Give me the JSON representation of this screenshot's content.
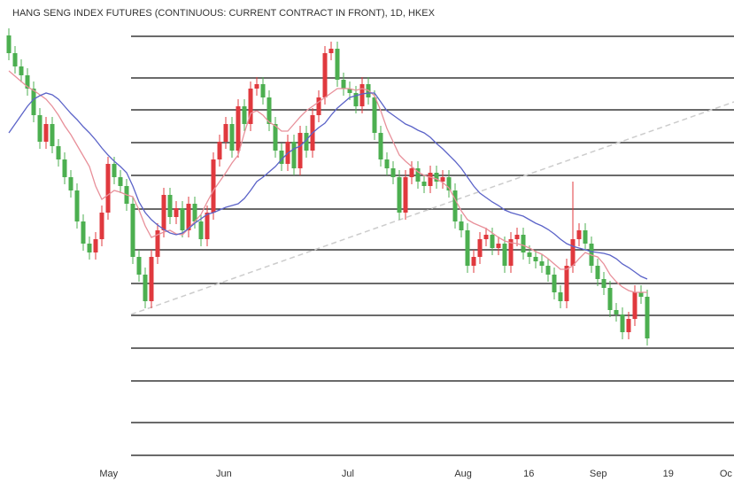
{
  "chart_data": {
    "type": "candlestick",
    "title": "HANG SENG INDEX FUTURES (CONTINUOUS: CURRENT CONTRACT IN FRONT), 1D, HKEX",
    "up_color": "#e0393e",
    "down_color": "#4caf50",
    "xlim": [
      -1.43,
      117
    ],
    "ylim": [
      0,
      520
    ],
    "xticks": [
      {
        "value": 16.1,
        "label": "May"
      },
      {
        "value": 34.7,
        "label": "Jun"
      },
      {
        "value": 54.7,
        "label": "Jul"
      },
      {
        "value": 73.3,
        "label": "Aug"
      },
      {
        "value": 83.9,
        "label": "16"
      },
      {
        "value": 95.1,
        "label": "Sep"
      },
      {
        "value": 106.4,
        "label": "19"
      },
      {
        "value": 115.7,
        "label": "Oc"
      }
    ],
    "open": [
      480,
      460,
      445,
      435,
      420,
      390,
      360,
      380,
      355,
      340,
      320,
      305,
      270,
      245,
      235,
      250,
      280,
      335,
      320,
      310,
      290,
      230,
      210,
      180,
      230,
      260,
      300,
      275,
      285,
      260,
      290,
      270,
      250,
      280,
      340,
      360,
      380,
      350,
      400,
      380,
      420,
      425,
      410,
      380,
      350,
      335,
      360,
      330,
      370,
      350,
      390,
      410,
      460,
      465,
      430,
      420,
      415,
      400,
      425,
      410,
      370,
      340,
      330,
      320,
      280,
      320,
      330,
      315,
      310,
      325,
      315,
      320,
      305,
      270,
      260,
      220,
      230,
      250,
      255,
      240,
      245,
      220,
      250,
      255,
      235,
      230,
      225,
      220,
      210,
      190,
      180,
      220,
      250,
      260,
      245,
      220,
      205,
      195,
      170,
      165,
      145,
      160,
      190,
      185
    ],
    "high": [
      488,
      468,
      453,
      443,
      428,
      398,
      388,
      388,
      363,
      348,
      328,
      313,
      278,
      253,
      258,
      288,
      343,
      343,
      328,
      318,
      298,
      238,
      218,
      238,
      268,
      308,
      308,
      293,
      293,
      298,
      298,
      278,
      288,
      348,
      368,
      388,
      388,
      408,
      408,
      428,
      433,
      433,
      418,
      388,
      358,
      368,
      368,
      378,
      378,
      398,
      418,
      468,
      473,
      473,
      438,
      428,
      423,
      433,
      433,
      418,
      378,
      348,
      338,
      328,
      328,
      338,
      338,
      323,
      333,
      333,
      328,
      328,
      313,
      278,
      268,
      238,
      258,
      263,
      263,
      253,
      253,
      258,
      263,
      263,
      243,
      238,
      233,
      228,
      218,
      198,
      228,
      315,
      268,
      268,
      253,
      228,
      213,
      203,
      178,
      173,
      168,
      198,
      198,
      193
    ],
    "low": [
      452,
      437,
      427,
      412,
      382,
      352,
      352,
      347,
      332,
      312,
      297,
      262,
      237,
      227,
      227,
      242,
      272,
      312,
      302,
      282,
      222,
      202,
      172,
      172,
      222,
      252,
      267,
      267,
      252,
      252,
      262,
      242,
      242,
      272,
      332,
      352,
      342,
      342,
      372,
      372,
      412,
      402,
      372,
      342,
      327,
      327,
      322,
      322,
      342,
      342,
      382,
      402,
      452,
      422,
      412,
      407,
      392,
      392,
      402,
      362,
      332,
      322,
      312,
      272,
      272,
      312,
      307,
      302,
      302,
      307,
      307,
      297,
      262,
      252,
      212,
      212,
      222,
      242,
      232,
      232,
      212,
      212,
      242,
      227,
      222,
      217,
      212,
      202,
      182,
      172,
      172,
      212,
      242,
      237,
      212,
      197,
      187,
      162,
      157,
      137,
      137,
      152,
      177,
      130
    ],
    "close": [
      460,
      445,
      435,
      420,
      390,
      360,
      380,
      355,
      340,
      320,
      305,
      270,
      245,
      235,
      250,
      280,
      335,
      320,
      310,
      290,
      230,
      210,
      180,
      230,
      260,
      300,
      275,
      285,
      260,
      290,
      270,
      250,
      280,
      340,
      360,
      380,
      350,
      400,
      380,
      420,
      425,
      410,
      380,
      350,
      335,
      360,
      330,
      370,
      350,
      390,
      410,
      460,
      465,
      430,
      420,
      415,
      400,
      425,
      410,
      370,
      340,
      330,
      320,
      280,
      320,
      330,
      315,
      310,
      325,
      315,
      320,
      305,
      270,
      260,
      220,
      230,
      250,
      255,
      240,
      245,
      220,
      250,
      255,
      235,
      230,
      225,
      220,
      210,
      190,
      180,
      220,
      250,
      260,
      245,
      220,
      205,
      195,
      170,
      165,
      145,
      160,
      190,
      185,
      138
    ],
    "moving_averages": [
      {
        "color": "#e8909a",
        "values": [
          440,
          434,
          428,
          422,
          418,
          413,
          408,
          400,
          390,
          378,
          368,
          356,
          344,
          332,
          310,
          295,
          300,
          305,
          303,
          300,
          298,
          283,
          265,
          252,
          255,
          258,
          260,
          256,
          255,
          262,
          270,
          278,
          292,
          305,
          315,
          325,
          336,
          345,
          370,
          392,
          395,
          390,
          382,
          378,
          372,
          372,
          380,
          388,
          395,
          400,
          405,
          410,
          415,
          420,
          420,
          420,
          418,
          420,
          418,
          412,
          395,
          375,
          360,
          345,
          338,
          332,
          326,
          322,
          320,
          318,
          314,
          308,
          295,
          282,
          272,
          268,
          265,
          262,
          257,
          252,
          248,
          246,
          245,
          243,
          240,
          236,
          233,
          228,
          222,
          216,
          216,
          220,
          228,
          235,
          232,
          230,
          222,
          210,
          202,
          196,
          192,
          190,
          190,
          190
        ]
      },
      {
        "color": "#5b63c8",
        "values": [
          370,
          380,
          390,
          400,
          408,
          412,
          415,
          413,
          408,
          400,
          392,
          385,
          377,
          370,
          362,
          353,
          345,
          338,
          332,
          325,
          310,
          292,
          280,
          272,
          266,
          261,
          257,
          255,
          257,
          262,
          268,
          273,
          278,
          280,
          283,
          286,
          288,
          290,
          296,
          305,
          315,
          320,
          326,
          332,
          340,
          347,
          352,
          355,
          362,
          370,
          376,
          381,
          390,
          398,
          404,
          410,
          412,
          414,
          415,
          415,
          405,
          395,
          390,
          385,
          380,
          377,
          373,
          370,
          365,
          358,
          352,
          345,
          338,
          330,
          320,
          310,
          302,
          297,
          292,
          288,
          283,
          280,
          278,
          276,
          272,
          268,
          265,
          261,
          256,
          250,
          245,
          242,
          240,
          238,
          236,
          235,
          234,
          232,
          228,
          222,
          218,
          213,
          208,
          205
        ]
      }
    ],
    "levels": [
      479,
      432,
      396,
      359,
      322,
      284,
      238,
      200,
      164,
      127,
      90,
      43,
      6
    ],
    "trendline": {
      "x": [
        19.7,
        117
      ],
      "values": [
        165,
        405
      ]
    }
  }
}
